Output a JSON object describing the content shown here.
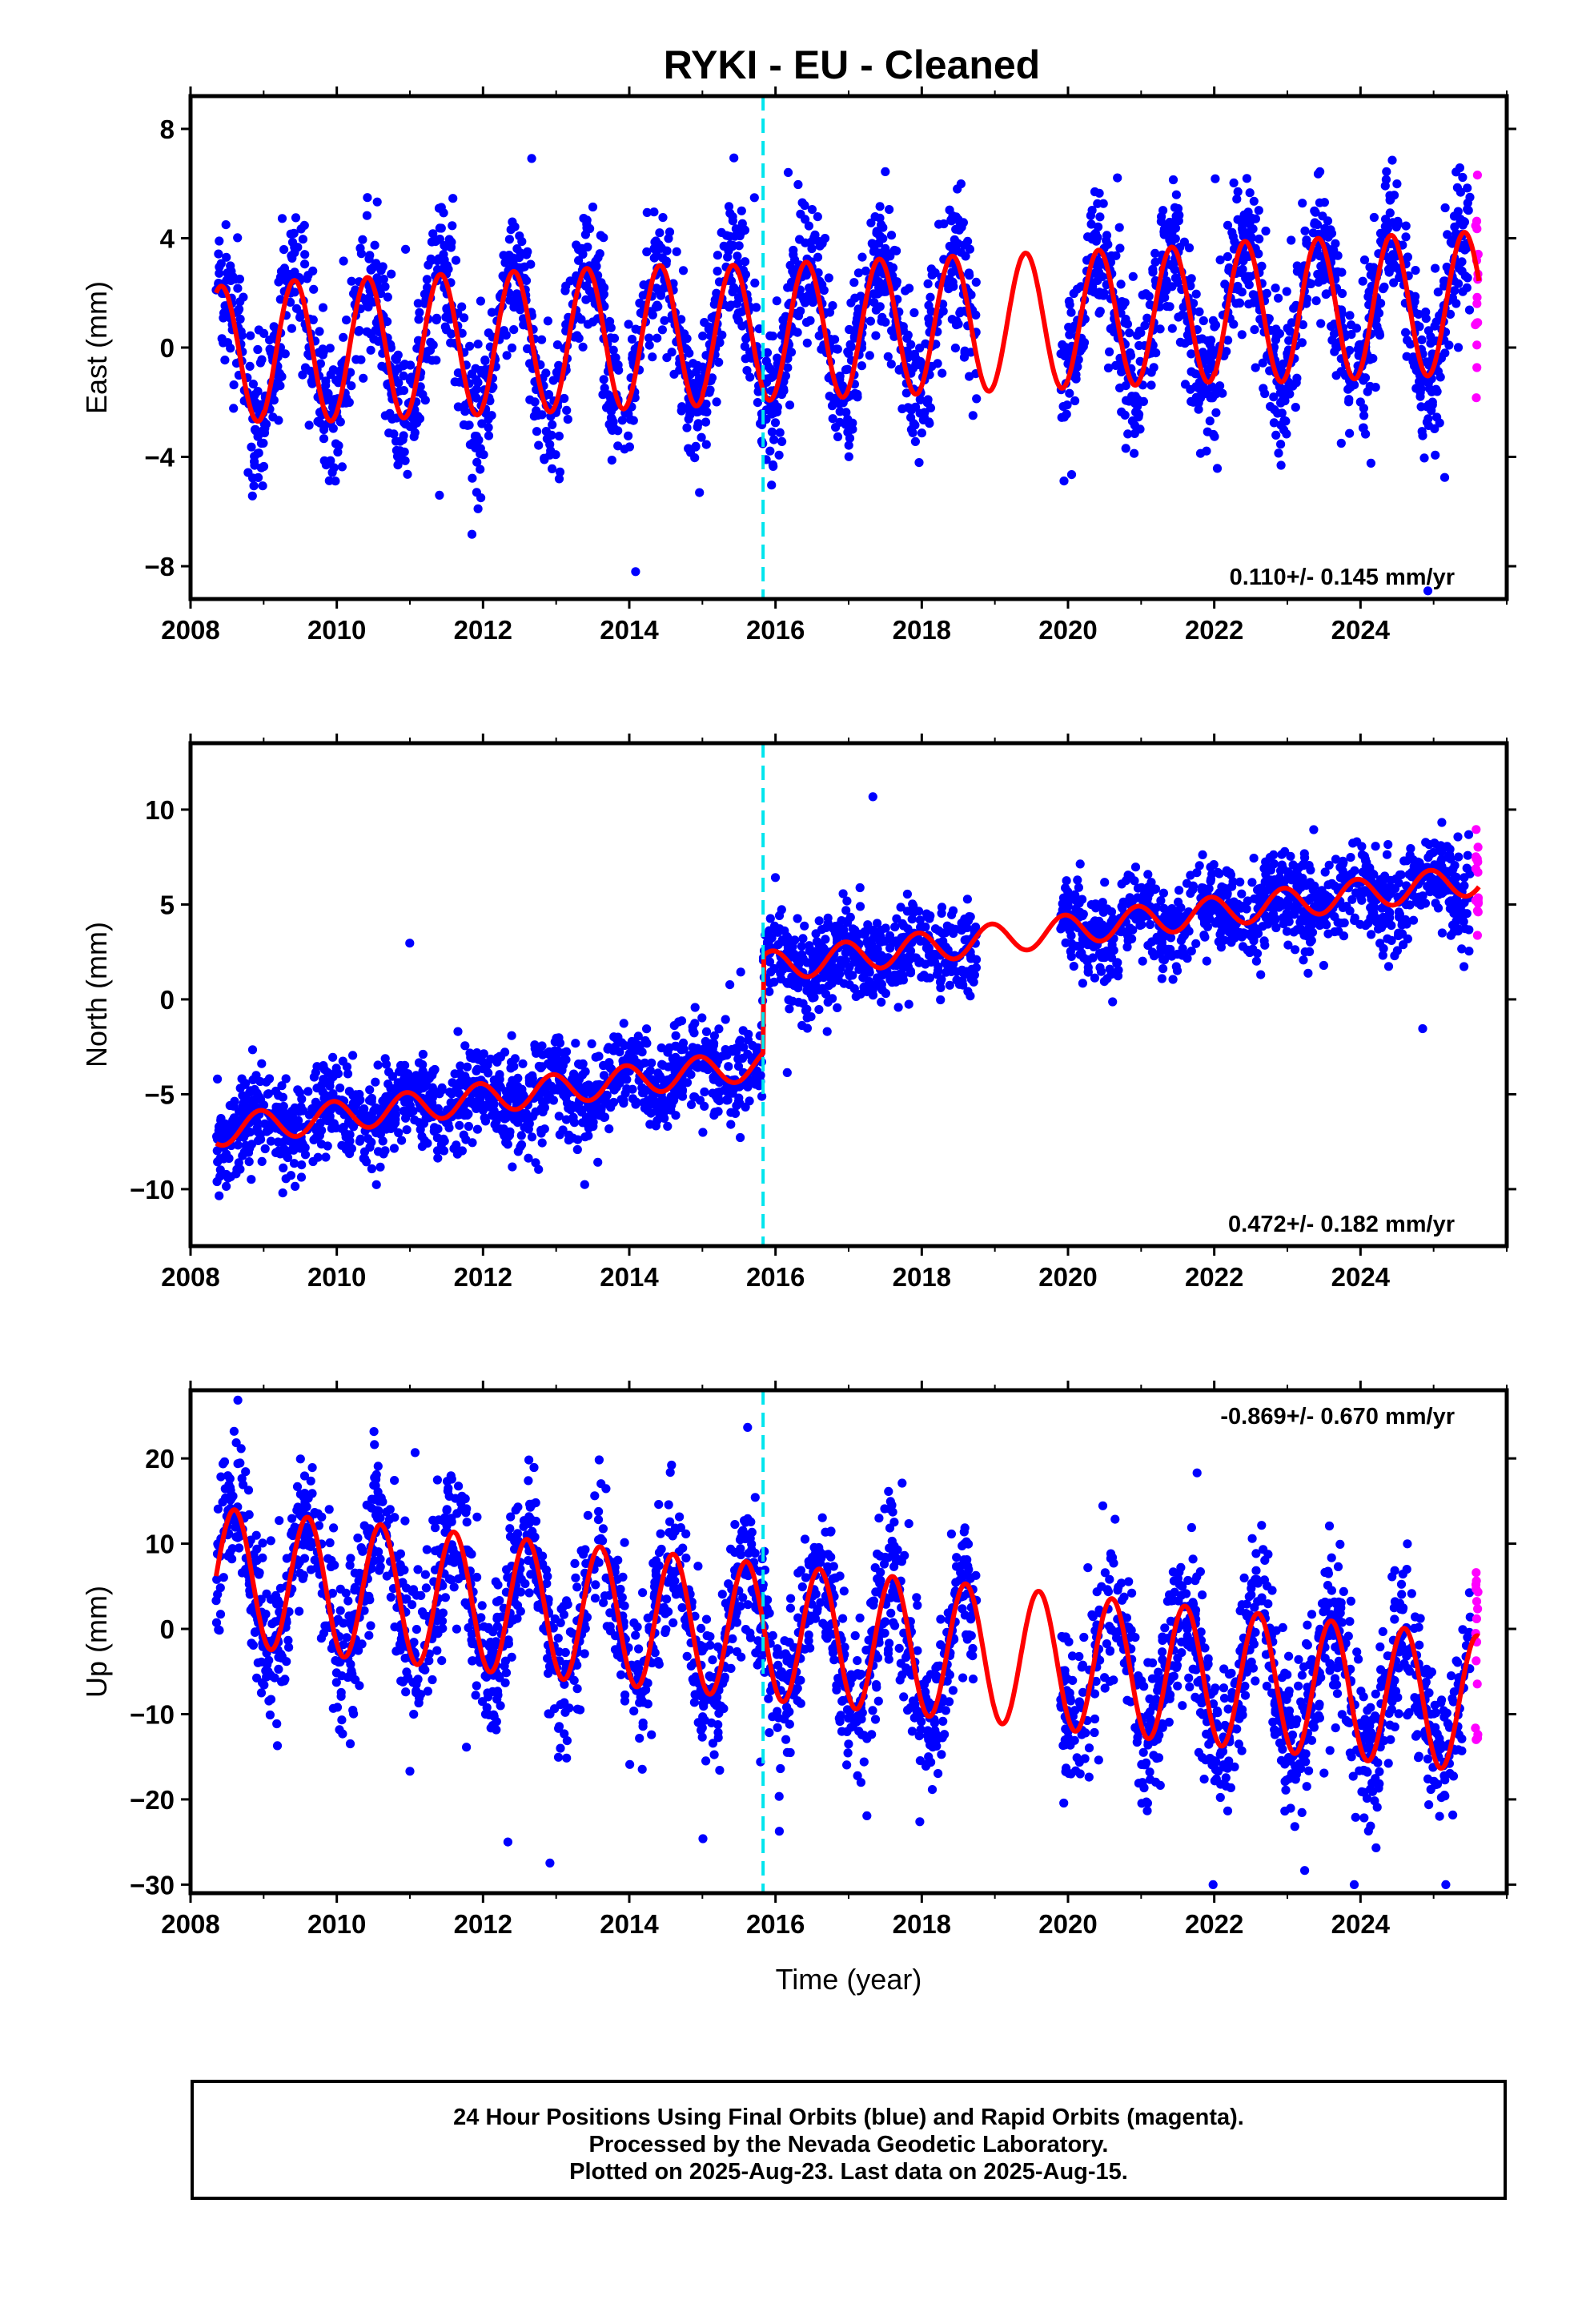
{
  "chart_data": [
    {
      "type": "scatter",
      "title": "RYKI  - EU - Cleaned",
      "ylabel": "East (mm)",
      "xlim": [
        2008.0,
        2026.0
      ],
      "ylim": [
        -9.2,
        9.2
      ],
      "xticks": [
        2008,
        2010,
        2012,
        2014,
        2016,
        2018,
        2020,
        2022,
        2024
      ],
      "yticks": [
        -8,
        -4,
        0,
        4,
        8
      ],
      "rate_label": "0.110+/- 0.145 mm/yr",
      "rate_position": "bottom-right",
      "offset_epoch": 2015.83,
      "data_range": [
        2008.35,
        2025.62
      ],
      "data_gap": [
        2018.75,
        2019.9
      ],
      "rapid_start": 2025.5,
      "model": {
        "slope": 0.11,
        "intercept": -0.3,
        "annual_amplitude": [
          2.5,
          2.6,
          2.6,
          2.6,
          2.6,
          2.6,
          2.6,
          2.5,
          2.5,
          2.5,
          2.5,
          2.5,
          2.5,
          2.5,
          2.6,
          2.6,
          2.6,
          2.6
        ],
        "annual_peak_phase": 0.42,
        "offset_jump": 0.0
      },
      "scatter": {
        "sigma": 1.7,
        "outlier_min": -8.9,
        "outlier_max": 8.9,
        "count": 3000
      },
      "grid": false,
      "legend": "none"
    },
    {
      "type": "scatter",
      "ylabel": "North (mm)",
      "xlim": [
        2008.0,
        2026.0
      ],
      "ylim": [
        -13.0,
        13.5
      ],
      "xticks": [
        2008,
        2010,
        2012,
        2014,
        2016,
        2018,
        2020,
        2022,
        2024
      ],
      "yticks": [
        -10,
        -5,
        0,
        5,
        10
      ],
      "rate_label": "0.472+/- 0.182 mm/yr",
      "rate_position": "bottom-right",
      "offset_epoch": 2015.83,
      "data_range": [
        2008.35,
        2025.62
      ],
      "data_gap": [
        2018.75,
        2019.9
      ],
      "rapid_start": 2025.5,
      "model": {
        "slope": 0.472,
        "intercept": -7.1,
        "annual_amplitude": [
          0.8,
          0.8,
          0.8,
          0.8,
          0.8,
          0.8,
          0.8,
          0.8,
          0.8,
          0.8,
          0.8,
          0.8,
          0.8,
          0.8,
          0.8,
          0.8,
          0.8,
          0.8
        ],
        "annual_peak_phase": 0.95,
        "offset_jump": 5.1
      },
      "scatter": {
        "sigma": 1.6,
        "outlier_min": -12.5,
        "outlier_max": 13.0,
        "count": 3000
      },
      "grid": false,
      "legend": "none"
    },
    {
      "type": "scatter",
      "ylabel": "Up (mm)",
      "xlabel": "Time (year)",
      "xlim": [
        2008.0,
        2026.0
      ],
      "ylim": [
        -31.0,
        28.0
      ],
      "xticks": [
        2008,
        2010,
        2012,
        2014,
        2016,
        2018,
        2020,
        2022,
        2024
      ],
      "yticks": [
        -30,
        -20,
        -10,
        0,
        10,
        20
      ],
      "rate_label": "-0.869+/- 0.670 mm/yr",
      "rate_position": "top-right",
      "offset_epoch": 2015.83,
      "data_range": [
        2008.35,
        2025.62
      ],
      "data_gap": [
        2018.75,
        2019.9
      ],
      "rapid_start": 2025.5,
      "model": {
        "slope": -0.869,
        "intercept": 6.5,
        "annual_amplitude": [
          8,
          8,
          8,
          8,
          8,
          8,
          8,
          8,
          8,
          8,
          8,
          8,
          8,
          8,
          8,
          8,
          8,
          8
        ],
        "annual_peak_phase": 0.6,
        "offset_jump": 0.0
      },
      "scatter": {
        "sigma": 6.0,
        "outlier_min": -30.0,
        "outlier_max": 27.0,
        "count": 3000
      },
      "grid": false,
      "legend": "none"
    }
  ],
  "colors": {
    "final_orbits": "#0000ff",
    "rapid_orbits": "#ff00ff",
    "model_fit": "#ff0000",
    "offset_marker": "#00e5ee",
    "frame": "#000000"
  },
  "footer": {
    "line1": "24 Hour Positions Using Final Orbits (blue) and Rapid Orbits (magenta).",
    "line2": "Processed by the Nevada Geodetic Laboratory.",
    "line3": "Plotted on 2025-Aug-23. Last data on 2025-Aug-15."
  }
}
